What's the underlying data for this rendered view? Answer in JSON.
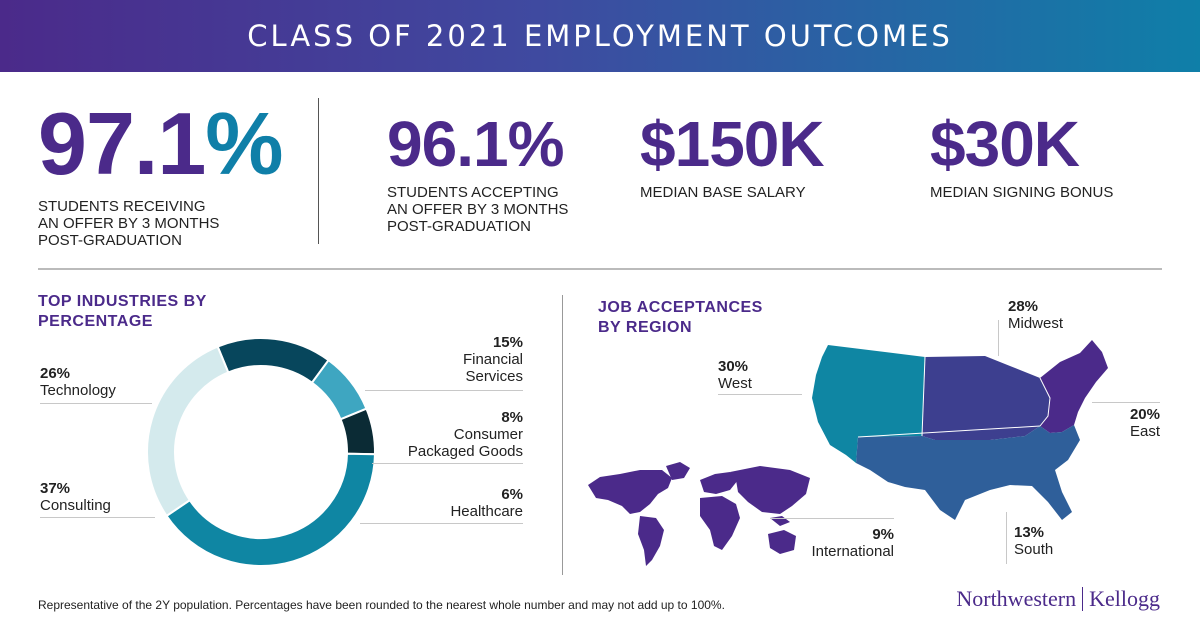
{
  "header": {
    "title": "CLASS OF 2021 EMPLOYMENT OUTCOMES"
  },
  "stats": [
    {
      "value": "97.1%",
      "label_lines": [
        "STUDENTS RECEIVING",
        "AN OFFER BY 3 MONTHS",
        "POST-GRADUATION"
      ],
      "color": "#4b2a8a",
      "accent": "#0f7fa8"
    },
    {
      "value": "96.1%",
      "label_lines": [
        "STUDENTS ACCEPTING",
        "AN OFFER BY 3 MONTHS",
        "POST-GRADUATION"
      ],
      "color": "#4b2a8a"
    },
    {
      "value": "$150K",
      "label_lines": [
        "MEDIAN BASE SALARY"
      ],
      "color": "#4b2a8a"
    },
    {
      "value": "$30K",
      "label_lines": [
        "MEDIAN SIGNING BONUS"
      ],
      "color": "#4b2a8a"
    }
  ],
  "industries": {
    "title_lines": [
      "TOP INDUSTRIES BY",
      "PERCENTAGE"
    ]
  },
  "regions": {
    "title_lines": [
      "JOB ACCEPTANCES",
      "BY REGION"
    ],
    "colors": {
      "west": "#0f86a3",
      "midwest": "#3d3f8f",
      "east": "#4b2a8a",
      "south": "#2f5f9a",
      "international": "#4b2a8a"
    }
  },
  "chart_data": [
    {
      "type": "pie",
      "title": "TOP INDUSTRIES BY PERCENTAGE",
      "categories": [
        "Financial Services",
        "Consumer Packaged Goods",
        "Healthcare",
        "Consulting",
        "Technology"
      ],
      "values": [
        15,
        8,
        6,
        37,
        26
      ],
      "value_labels": [
        "15%",
        "8%",
        "6%",
        "37%",
        "26%"
      ],
      "name_lines": [
        [
          "Financial",
          "Services"
        ],
        [
          "Consumer",
          "Packaged Goods"
        ],
        [
          "Healthcare"
        ],
        [
          "Consulting"
        ],
        [
          "Technology"
        ]
      ],
      "colors": [
        "#07465c",
        "#3ea6c1",
        "#0b2b35",
        "#0f86a3",
        "#d4eaed"
      ]
    },
    {
      "type": "table",
      "title": "JOB ACCEPTANCES BY REGION",
      "categories": [
        "Midwest",
        "West",
        "East",
        "South",
        "International"
      ],
      "values": [
        28,
        30,
        20,
        13,
        9
      ],
      "value_labels": [
        "28%",
        "30%",
        "20%",
        "13%",
        "9%"
      ]
    }
  ],
  "footer": {
    "note": "Representative of the 2Y population. Percentages have been rounded to the nearest whole number and may not add up to 100%.",
    "logo_left": "Northwestern",
    "logo_right": "Kellogg"
  }
}
